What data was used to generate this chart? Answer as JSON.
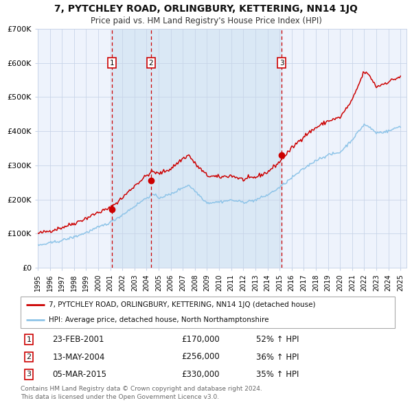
{
  "title1": "7, PYTCHLEY ROAD, ORLINGBURY, KETTERING, NN14 1JQ",
  "title2": "Price paid vs. HM Land Registry's House Price Index (HPI)",
  "ylim": [
    0,
    700000
  ],
  "yticks": [
    0,
    100000,
    200000,
    300000,
    400000,
    500000,
    600000,
    700000
  ],
  "ytick_labels": [
    "£0",
    "£100K",
    "£200K",
    "£300K",
    "£400K",
    "£500K",
    "£600K",
    "£700K"
  ],
  "xlim_start": 1995.0,
  "xlim_end": 2025.5,
  "sale_dates": [
    2001.14,
    2004.36,
    2015.17
  ],
  "sale_prices": [
    170000,
    256000,
    330000
  ],
  "hpi_color": "#8ec4e8",
  "price_color": "#cc0000",
  "vline_color": "#cc0000",
  "shade_color": "#ddeeff",
  "legend_label_price": "7, PYTCHLEY ROAD, ORLINGBURY, KETTERING, NN14 1JQ (detached house)",
  "legend_label_hpi": "HPI: Average price, detached house, North Northamptonshire",
  "sale_labels": [
    "1",
    "2",
    "3"
  ],
  "sale_info": [
    [
      "23-FEB-2001",
      "£170,000",
      "52% ↑ HPI"
    ],
    [
      "13-MAY-2004",
      "£256,000",
      "36% ↑ HPI"
    ],
    [
      "05-MAR-2015",
      "£330,000",
      "35% ↑ HPI"
    ]
  ],
  "footer": "Contains HM Land Registry data © Crown copyright and database right 2024.\nThis data is licensed under the Open Government Licence v3.0.",
  "bg_color": "#ffffff",
  "plot_bg_color": "#eef3fc",
  "grid_color": "#c8d4e8"
}
